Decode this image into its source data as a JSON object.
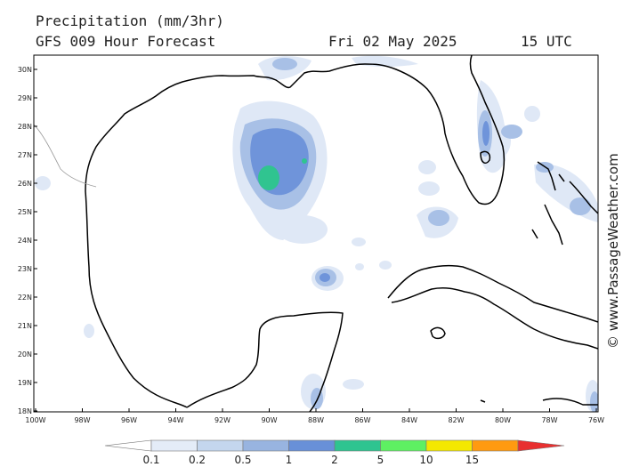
{
  "header": {
    "title": "Precipitation (mm/3hr)",
    "subtitle": "GFS 009 Hour Forecast",
    "date": "Fri 02 May 2025",
    "time": "15 UTC"
  },
  "credit": "© www.PassageWeather.com",
  "axes": {
    "lat_labels": [
      "30N",
      "29N",
      "28N",
      "27N",
      "26N",
      "25N",
      "24N",
      "23N",
      "22N",
      "21N",
      "20N",
      "19N",
      "18N"
    ],
    "lon_labels": [
      "100W",
      "98W",
      "96W",
      "94W",
      "92W",
      "90W",
      "88W",
      "86W",
      "84W",
      "82W",
      "80W",
      "78W",
      "76W"
    ]
  },
  "colorbar": {
    "labels": [
      "0.1",
      "0.2",
      "0.5",
      "1",
      "2",
      "5",
      "10",
      "15"
    ],
    "colors": [
      "#ffffff",
      "#e4ecf8",
      "#c4d6ee",
      "#98b4e0",
      "#6890d8",
      "#2ec490",
      "#5ef062",
      "#f4e800",
      "#ff9a10",
      "#e83030"
    ]
  },
  "colors": {
    "light": "#dfe8f6",
    "medium": "#a8c0e6",
    "strong": "#6f94da",
    "heavy": "#30c490",
    "coast": "#000000"
  }
}
